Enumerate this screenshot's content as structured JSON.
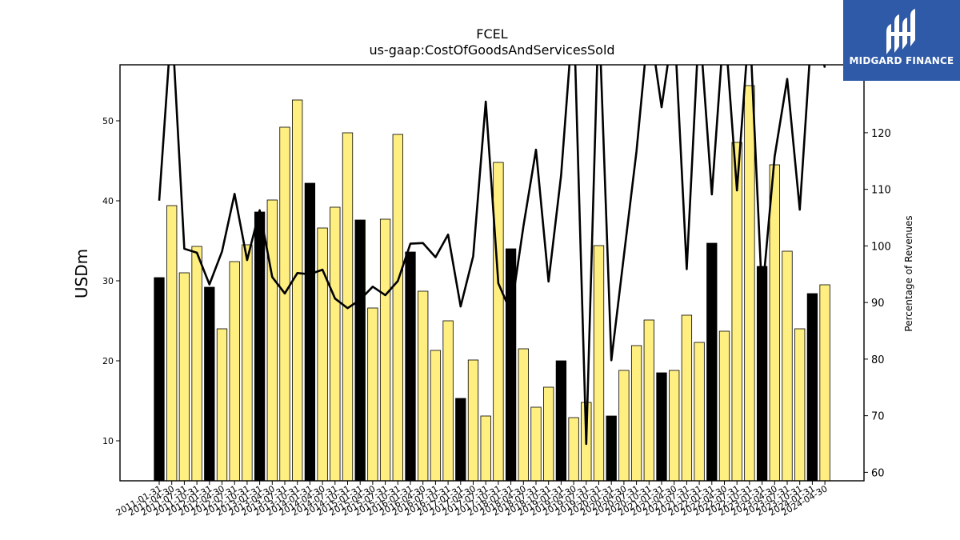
{
  "chart_data": {
    "type": "bar",
    "title": "FCEL",
    "subtitle": "us-gaap:CostOfGoodsAndServicesSold",
    "ylabel": "USDm",
    "y2label": "Percentage of Revenues",
    "ylim": [
      5,
      57
    ],
    "y2lim": [
      58.5,
      132
    ],
    "yticks": [
      10,
      20,
      30,
      40,
      50
    ],
    "y2ticks": [
      60,
      70,
      80,
      90,
      100,
      110,
      120
    ],
    "categories": [
      "2011-01-31",
      "2011-04-30",
      "2011-07-31",
      "2011-10-31",
      "2012-01-31",
      "2012-04-30",
      "2012-07-31",
      "2012-10-31",
      "2013-01-31",
      "2013-04-30",
      "2013-07-31",
      "2013-10-31",
      "2014-01-31",
      "2014-04-30",
      "2014-07-31",
      "2014-10-31",
      "2015-01-31",
      "2015-04-30",
      "2015-07-31",
      "2015-10-31",
      "2016-01-31",
      "2016-04-30",
      "2016-07-31",
      "2016-10-31",
      "2017-01-31",
      "2017-04-30",
      "2017-07-31",
      "2017-10-31",
      "2018-01-31",
      "2018-04-30",
      "2018-07-31",
      "2018-10-31",
      "2019-01-31",
      "2019-04-30",
      "2019-07-31",
      "2019-10-31",
      "2020-01-31",
      "2020-04-30",
      "2020-07-31",
      "2020-10-31",
      "2021-01-31",
      "2021-04-30",
      "2021-07-31",
      "2021-10-31",
      "2022-01-31",
      "2022-04-30",
      "2022-07-31",
      "2022-10-31",
      "2023-01-31",
      "2023-04-30",
      "2023-07-31",
      "2023-10-31",
      "2024-01-31",
      "2024-04-30"
    ],
    "tick_labels": [
      "2011-01-31",
      "2011-04-30",
      "2011-07-31",
      "2011-10-31",
      "2012-01-31",
      "2012-04-30",
      "2012-07-31",
      "2012-10-31",
      "2013-01-31",
      "2013-04-30",
      "2013-07-31",
      "2013-10-31",
      "2014-01-31",
      "2014-04-30",
      "2014-07-31",
      "2014-10-31",
      "2015-01-31",
      "2015-04-30",
      "2015-07-31",
      "2015-10-31",
      "2016-01-31",
      "2016-04-30",
      "2016-07-31",
      "2016-10-31",
      "2017-01-31",
      "2017-04-30",
      "2017-07-31",
      "2017-10-31",
      "2018-01-31",
      "2018-04-30",
      "2018-07-31",
      "2018-10-31",
      "2019-01-31",
      "2019-04-30",
      "2019-07-31",
      "2019-10-31",
      "2020-01-31",
      "2020-04-30",
      "2020-07-31",
      "2020-10-31",
      "2021-01-31",
      "2021-04-30",
      "2021-07-31",
      "2021-10-31",
      "2022-01-31",
      "2022-04-30",
      "2022-07-31",
      "2022-10-31",
      "2023-01-31",
      "2023-04-30",
      "2023-07-31",
      "2023-10-31",
      "2024-01-31",
      "2024-04-30"
    ],
    "series": [
      {
        "type": "bar",
        "values": [
          30.4,
          39.4,
          31.0,
          34.3,
          29.2,
          24.0,
          32.4,
          34.5,
          38.6,
          40.1,
          49.2,
          52.6,
          42.2,
          36.6,
          39.2,
          48.5,
          37.6,
          26.6,
          37.7,
          48.3,
          33.6,
          28.7,
          21.3,
          25.0,
          15.3,
          20.1,
          13.1,
          44.8,
          34.0,
          21.5,
          14.2,
          16.7,
          20.0,
          12.9,
          14.8,
          34.4,
          13.1,
          18.8,
          21.9,
          25.1,
          18.5,
          18.8,
          25.7,
          22.3,
          34.7,
          23.7,
          47.3,
          54.4,
          31.8,
          44.5,
          33.7,
          24.0,
          28.4,
          29.5
        ]
      },
      {
        "type": "line",
        "axis": "right",
        "values": [
          108,
          140,
          99.5,
          98.8,
          93.2,
          99.0,
          109.2,
          97.5,
          106.3,
          94.5,
          91.6,
          95.2,
          95.0,
          95.8,
          90.7,
          89.0,
          90.5,
          92.8,
          91.3,
          93.8,
          100.4,
          100.5,
          98.0,
          102.0,
          89.3,
          98.2,
          125.5,
          93.4,
          88.3,
          103.5,
          117.0,
          93.7,
          112.5,
          142,
          65.0,
          142,
          79.8,
          98.3,
          116.7,
          140,
          124.5,
          140,
          95.9,
          140,
          109.1,
          140,
          109.8,
          140,
          91.0,
          115.8,
          129.5,
          106.4,
          140,
          131.5
        ]
      }
    ],
    "bar_colors": [
      "#000000",
      "#ffee80",
      "#ffee80",
      "#ffee80",
      "#000000",
      "#ffee80",
      "#ffee80",
      "#ffee80",
      "#000000",
      "#ffee80",
      "#ffee80",
      "#ffee80",
      "#000000",
      "#ffee80",
      "#ffee80",
      "#ffee80",
      "#000000",
      "#ffee80",
      "#ffee80",
      "#ffee80",
      "#000000",
      "#ffee80",
      "#ffee80",
      "#ffee80",
      "#000000",
      "#ffee80",
      "#ffee80",
      "#ffee80",
      "#000000",
      "#ffee80",
      "#ffee80",
      "#ffee80",
      "#000000",
      "#ffee80",
      "#ffee80",
      "#ffee80",
      "#000000",
      "#ffee80",
      "#ffee80",
      "#ffee80",
      "#000000",
      "#ffee80",
      "#ffee80",
      "#ffee80",
      "#000000",
      "#ffee80",
      "#ffee80",
      "#ffee80",
      "#000000",
      "#ffee80",
      "#ffee80",
      "#ffee80",
      "#000000",
      "#ffee80"
    ],
    "line_color": "#000000",
    "grid": false,
    "legend": "none"
  },
  "logo": {
    "text": "MIDGARD FINANCE",
    "background": "#2f5aa8",
    "icon": "midgard-logo-icon"
  }
}
